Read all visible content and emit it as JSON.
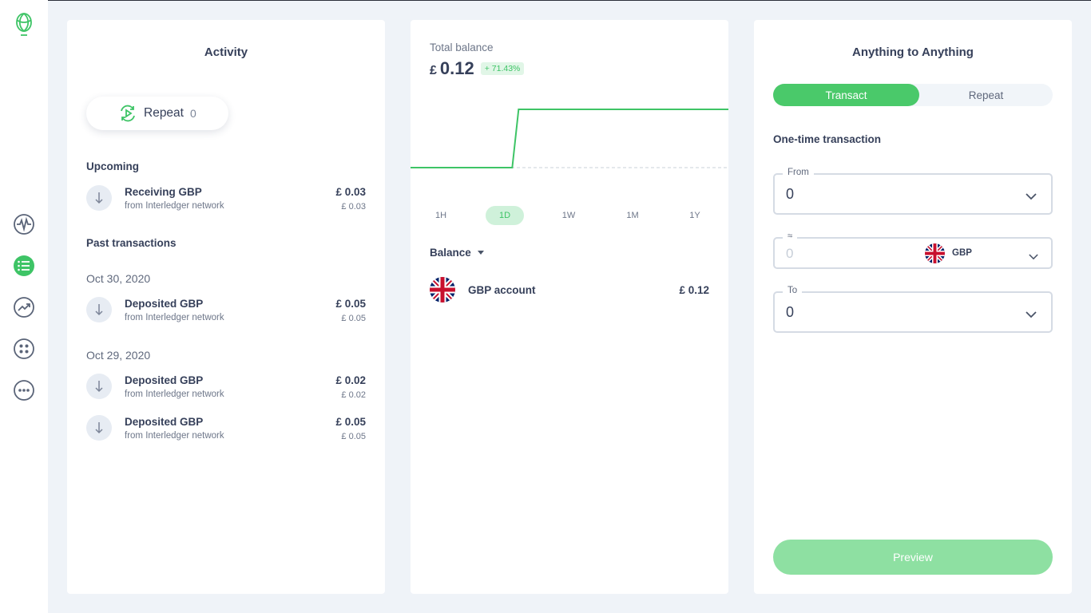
{
  "sidebar": {
    "logo_icon": "uphold-logo-icon",
    "items": [
      {
        "name": "activity-pulse-icon",
        "active": false
      },
      {
        "name": "list-icon",
        "active": true
      },
      {
        "name": "trend-icon",
        "active": false
      },
      {
        "name": "apps-icon",
        "active": false
      },
      {
        "name": "more-icon",
        "active": false
      }
    ],
    "accent": "#3ec466"
  },
  "activity": {
    "title": "Activity",
    "repeat_label": "Repeat",
    "repeat_count": "0",
    "upcoming_label": "Upcoming",
    "upcoming": [
      {
        "title": "Receiving GBP",
        "subtitle": "from Interledger network",
        "amount": "£ 0.03",
        "amount_secondary": "£ 0.03"
      }
    ],
    "past_label": "Past transactions",
    "groups": [
      {
        "date": "Oct 30, 2020",
        "items": [
          {
            "title": "Deposited GBP",
            "subtitle": "from Interledger network",
            "amount": "£ 0.05",
            "amount_secondary": "£ 0.05"
          }
        ]
      },
      {
        "date": "Oct 29, 2020",
        "items": [
          {
            "title": "Deposited GBP",
            "subtitle": "from Interledger network",
            "amount": "£ 0.02",
            "amount_secondary": "£ 0.02"
          },
          {
            "title": "Deposited GBP",
            "subtitle": "from Interledger network",
            "amount": "£ 0.05",
            "amount_secondary": "£ 0.05"
          }
        ]
      }
    ]
  },
  "balance": {
    "total_label": "Total balance",
    "currency_symbol": "£",
    "total_value": "0.12",
    "change_badge": "+ 71.43%",
    "ranges": [
      "1H",
      "1D",
      "1W",
      "1M",
      "1Y"
    ],
    "active_range": "1D",
    "section_label": "Balance",
    "accounts": [
      {
        "name": "GBP account",
        "value": "£ 0.12",
        "flag": "uk-flag-icon"
      }
    ]
  },
  "chart_data": {
    "type": "line",
    "title": "",
    "xlabel": "",
    "ylabel": "",
    "series": [
      {
        "x": [
          0,
          0.32,
          0.34,
          1.0
        ],
        "y": [
          0.07,
          0.07,
          0.12,
          0.12
        ]
      }
    ],
    "baseline": 0.07,
    "line_color": "#3ec466"
  },
  "exchange": {
    "title": "Anything to Anything",
    "tabs": [
      "Transact",
      "Repeat"
    ],
    "active_tab": "Transact",
    "subtitle": "One-time transaction",
    "from_label": "From",
    "from_value": "0",
    "approx_label": "≈",
    "approx_placeholder": "0",
    "approx_currency": "GBP",
    "to_label": "To",
    "to_value": "0",
    "preview_label": "Preview"
  }
}
